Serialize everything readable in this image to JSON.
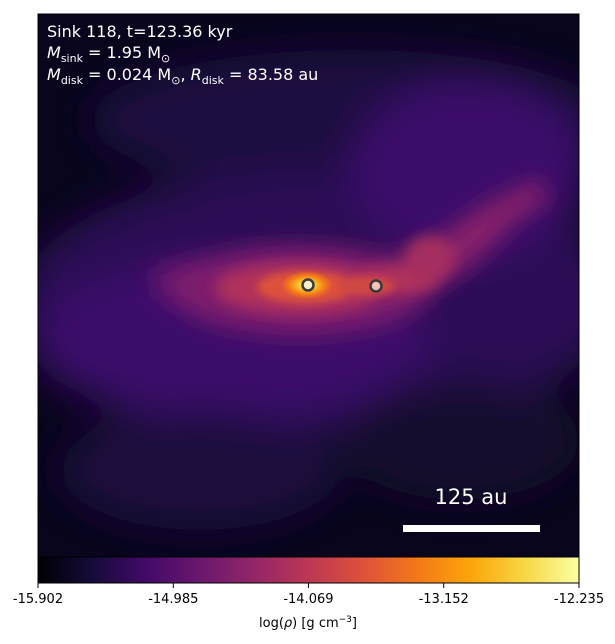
{
  "panel": {
    "line1": "Sink 118, t=123.36 kyr",
    "msink_label": "M",
    "msink_sub": "sink",
    "msink_value": " = 1.95 M",
    "msink_sun": "⊙",
    "mdisk_label": "M",
    "mdisk_sub": "disk",
    "mdisk_value": " = 0.024 M",
    "mdisk_sun": "⊙",
    "mdisk_sep": ", ",
    "rdisk_label": "R",
    "rdisk_sub": "disk",
    "rdisk_value": " = 83.58 au"
  },
  "scalebar": {
    "label": "125 au"
  },
  "colorbar": {
    "colormap": "inferno",
    "min": -15.902,
    "max": -12.235,
    "ticks": [
      "-15.902",
      "-14.985",
      "-14.069",
      "-13.152",
      "-12.235"
    ],
    "label_prefix": "log(",
    "label_rho": "ρ",
    "label_suffix": ") [g cm",
    "label_exp": "−3",
    "label_close": "]"
  },
  "sinks": [
    {
      "role": "primary"
    },
    {
      "role": "companion"
    }
  ]
}
